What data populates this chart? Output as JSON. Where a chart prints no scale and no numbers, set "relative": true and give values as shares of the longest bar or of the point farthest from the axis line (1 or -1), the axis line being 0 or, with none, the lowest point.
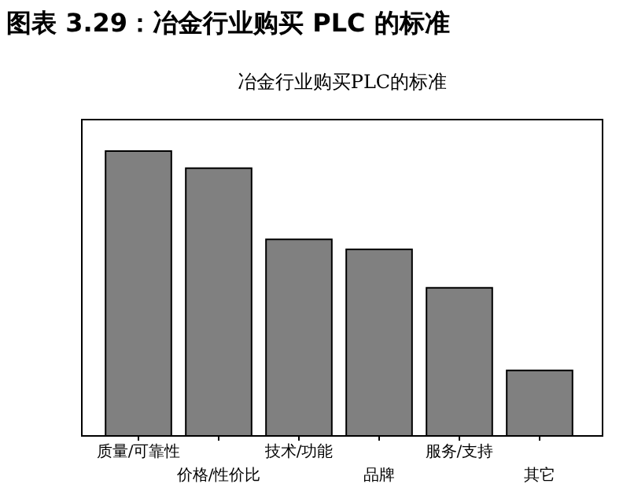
{
  "chart_data": {
    "type": "bar",
    "title": "图表 3.29：冶金行业购买 PLC 的标准",
    "subtitle": "冶金行业购买PLC的标准",
    "relative": true,
    "categories": [
      "质量/可靠性",
      "价格/性价比",
      "技术/功能",
      "品牌",
      "服务/支持",
      "其它"
    ],
    "values": [
      1,
      0.94,
      0.69,
      0.655,
      0.52,
      0.23
    ],
    "color": "#808080"
  }
}
